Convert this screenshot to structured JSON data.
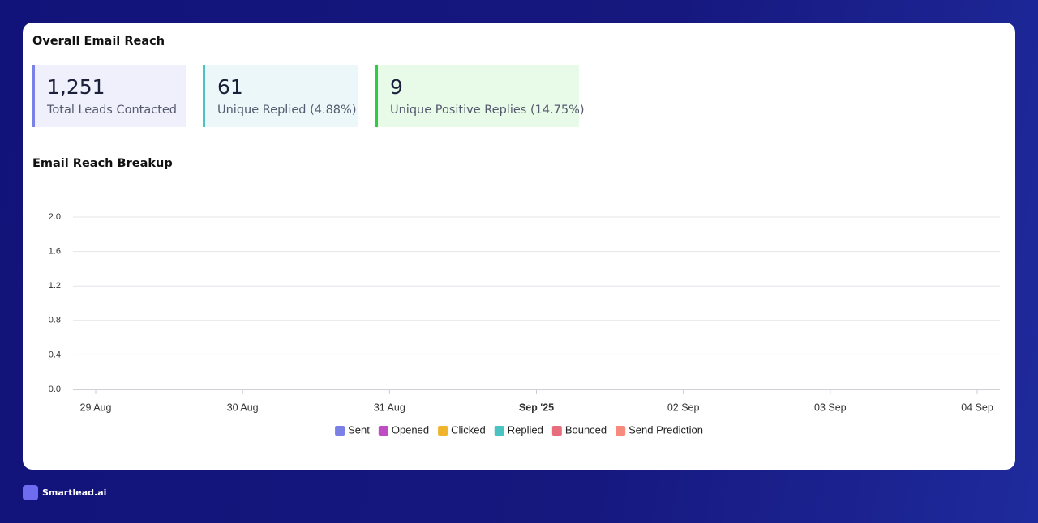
{
  "title": "Overall Email Reach",
  "stats": [
    {
      "value": "1,251",
      "label": "Total Leads Contacted"
    },
    {
      "value": "61",
      "label": "Unique Replied (4.88%)"
    },
    {
      "value": "9",
      "label": "Unique Positive Replies (14.75%)"
    }
  ],
  "chart_data": {
    "type": "line",
    "title": "Email Reach Breakup",
    "categories": [
      "29 Aug",
      "30 Aug",
      "31 Aug",
      "Sep '25",
      "02 Sep",
      "03 Sep",
      "04 Sep"
    ],
    "series": [
      {
        "name": "Sent",
        "color": "#7b80e6"
      },
      {
        "name": "Opened",
        "color": "#c04cc4"
      },
      {
        "name": "Clicked",
        "color": "#f0b42c"
      },
      {
        "name": "Replied",
        "color": "#4cc3c3"
      },
      {
        "name": "Bounced",
        "color": "#e56d7c"
      },
      {
        "name": "Send Prediction",
        "color": "#f78a7c"
      }
    ],
    "ylim": [
      0,
      2
    ],
    "yticks": [
      {
        "value": 0,
        "label": "0.0"
      },
      0.4,
      0.8,
      1.2,
      1.6,
      {
        "value": 2,
        "label": "2.0"
      }
    ],
    "grid": true,
    "legend": "bottom"
  },
  "footer": {
    "brand": "Smartlead.ai"
  }
}
